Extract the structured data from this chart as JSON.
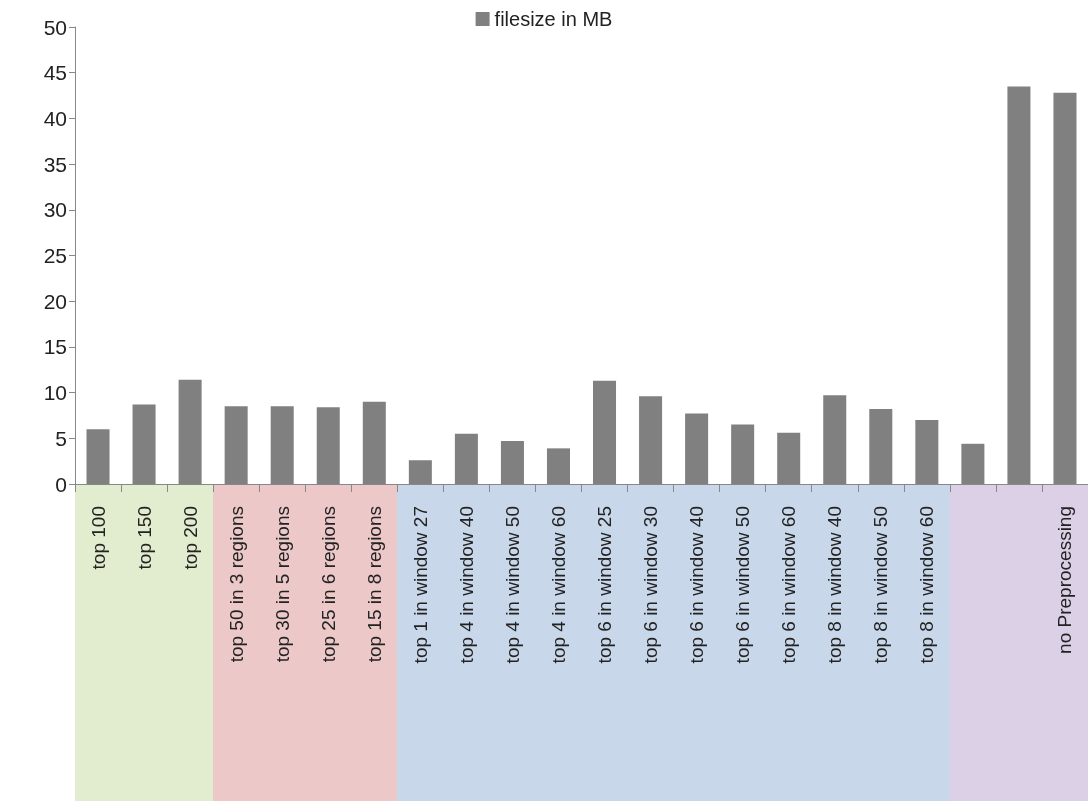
{
  "chart_data": {
    "type": "bar",
    "categories": [
      "top 100",
      "top 150",
      "top 200",
      "top 50 in 3 regions",
      "top 30 in 5 regions",
      "top 25 in 6 regions",
      "top 15 in 8 regions",
      "top 1 in window 27",
      "top 4 in window 40",
      "top 4 in window 50",
      "top 4 in window 60",
      "top 6 in window 25",
      "top 6 in window 30",
      "top 6 in window 40",
      "top 6 in window 50",
      "top 6 in window 60",
      "top 8 in window 40",
      "top 8 in window 50",
      "top 8 in window 60",
      null,
      null,
      "no Preprocessing"
    ],
    "series": [
      {
        "name": "filesize in MB",
        "color": "#808080",
        "values": [
          6.0,
          8.7,
          11.4,
          8.5,
          8.5,
          8.4,
          9.0,
          2.6,
          5.5,
          4.7,
          3.9,
          11.3,
          9.6,
          7.7,
          6.5,
          5.6,
          9.7,
          8.2,
          7.0,
          4.4,
          43.5,
          42.8
        ]
      }
    ],
    "ylim": [
      0,
      50
    ],
    "yticks": [
      0,
      5,
      10,
      15,
      20,
      25,
      30,
      35,
      40,
      45,
      50
    ],
    "grid": false,
    "legend": "top"
  }
}
